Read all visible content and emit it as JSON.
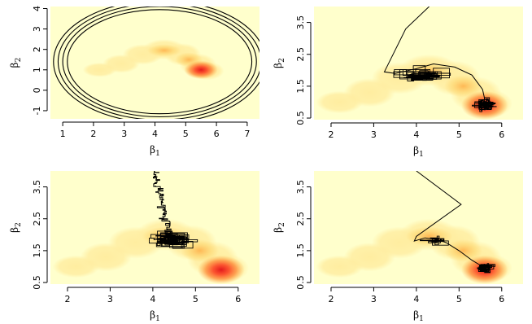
{
  "figure": {
    "xlabel": "β",
    "xlabel_sub": "1",
    "ylabel": "β",
    "ylabel_sub": "2"
  },
  "colors": {
    "background": "#ffffcc",
    "density_palette": [
      "#ffffcc",
      "#ffeda0",
      "#fed976",
      "#feb24c",
      "#fd8d3c",
      "#fc4e2a",
      "#e31a1c"
    ],
    "trace": "#000000"
  },
  "chart_data": [
    {
      "type": "heatmap",
      "panel": "top-left",
      "xlabel": "β1",
      "ylabel": "β2",
      "xlim": [
        0.6,
        7.4
      ],
      "ylim": [
        -1.4,
        4.1
      ],
      "xticks": [
        "1",
        "2",
        "3",
        "4",
        "5",
        "6",
        "7"
      ],
      "yticks": [
        "-1",
        "0",
        "1",
        "2",
        "3",
        "4"
      ],
      "density_peak": {
        "x": 5.5,
        "y": 1.0
      },
      "overlay": "contour rings",
      "rings": [
        {
          "cx": 4.15,
          "cy": 1.4,
          "rx": 3.0,
          "ry": 2.55
        },
        {
          "cx": 4.15,
          "cy": 1.4,
          "rx": 3.15,
          "ry": 2.7
        },
        {
          "cx": 4.15,
          "cy": 1.4,
          "rx": 3.3,
          "ry": 2.85
        },
        {
          "cx": 4.15,
          "cy": 1.4,
          "rx": 3.45,
          "ry": 3.0
        }
      ]
    },
    {
      "type": "heatmap",
      "panel": "top-right",
      "xlabel": "β1",
      "ylabel": "β2",
      "xlim": [
        1.6,
        6.5
      ],
      "ylim": [
        0.45,
        4.0
      ],
      "xticks": [
        "2",
        "3",
        "4",
        "5",
        "6"
      ],
      "yticks": [
        "0.5",
        "1.5",
        "2.5",
        "3.5"
      ],
      "density_peak": {
        "x": 5.6,
        "y": 0.9
      },
      "trace_path": [
        [
          4.3,
          4.0
        ],
        [
          3.75,
          3.3
        ],
        [
          3.25,
          1.95
        ],
        [
          3.5,
          1.9
        ],
        [
          4.0,
          2.05
        ],
        [
          4.4,
          2.2
        ],
        [
          4.9,
          2.1
        ],
        [
          5.3,
          1.85
        ],
        [
          5.55,
          1.4
        ],
        [
          5.6,
          1.1
        ]
      ],
      "trace_clusters": [
        {
          "x": 4.15,
          "y": 1.85,
          "sx": 0.45,
          "sy": 0.18,
          "n": 70,
          "seed": 11
        },
        {
          "x": 5.6,
          "y": 0.9,
          "sx": 0.18,
          "sy": 0.13,
          "n": 90,
          "seed": 23
        }
      ]
    },
    {
      "type": "heatmap",
      "panel": "bottom-left",
      "xlabel": "β1",
      "ylabel": "β2",
      "xlim": [
        1.6,
        6.5
      ],
      "ylim": [
        0.45,
        4.0
      ],
      "xticks": [
        "2",
        "3",
        "4",
        "5",
        "6"
      ],
      "yticks": [
        "0.5",
        "1.5",
        "2.5",
        "3.5"
      ],
      "density_peak": {
        "x": 5.6,
        "y": 0.9
      },
      "trace_walk": {
        "start": [
          4.05,
          4.0
        ],
        "end": [
          4.4,
          2.0
        ],
        "steps": 80,
        "seed": 5
      },
      "trace_clusters": [
        {
          "x": 4.45,
          "y": 1.85,
          "sx": 0.38,
          "sy": 0.18,
          "n": 120,
          "seed": 41
        }
      ]
    },
    {
      "type": "heatmap",
      "panel": "bottom-right",
      "xlabel": "β1",
      "ylabel": "β2",
      "xlim": [
        1.6,
        6.5
      ],
      "ylim": [
        0.45,
        4.0
      ],
      "xticks": [
        "2",
        "3",
        "4",
        "5",
        "6"
      ],
      "yticks": [
        "0.5",
        "1.5",
        "2.5",
        "3.5"
      ],
      "density_peak": {
        "x": 5.6,
        "y": 0.9
      },
      "trace_path": [
        [
          4.0,
          4.0
        ],
        [
          5.05,
          2.95
        ],
        [
          4.0,
          1.95
        ],
        [
          3.95,
          1.8
        ],
        [
          4.2,
          1.9
        ],
        [
          4.5,
          1.85
        ],
        [
          4.7,
          1.75
        ],
        [
          5.0,
          1.5
        ],
        [
          5.3,
          1.2
        ],
        [
          5.55,
          1.0
        ]
      ],
      "trace_clusters": [
        {
          "x": 4.4,
          "y": 1.8,
          "sx": 0.25,
          "sy": 0.12,
          "n": 25,
          "seed": 63
        },
        {
          "x": 5.6,
          "y": 0.95,
          "sx": 0.17,
          "sy": 0.12,
          "n": 70,
          "seed": 77
        }
      ]
    }
  ]
}
